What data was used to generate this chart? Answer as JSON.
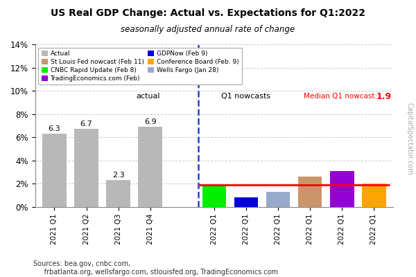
{
  "title": "US Real GDP Change: Actual vs. Expectations for Q1:2022",
  "subtitle": "seasonally adjusted annual rate of change",
  "sources": "Sources: bea.gov, cnbc.com,\n     frbatlanta.org, wellsfargo.com, stlouisfed.org, TradingEconomics.com",
  "watermark": "CapitalSpectator.com",
  "actual_labels": [
    "2021 Q1",
    "2021 Q2",
    "2021 Q3",
    "2021 Q4"
  ],
  "actual_values": [
    6.3,
    6.7,
    2.3,
    6.9
  ],
  "actual_color": "#b8b8b8",
  "nowcast_labels": [
    "2022 Q1",
    "2022 Q1",
    "2022 Q1",
    "2022 Q1",
    "2022 Q1",
    "2022 Q1"
  ],
  "nowcast_values": [
    1.9,
    0.8,
    1.3,
    2.6,
    3.1,
    2.0
  ],
  "nowcast_colors": [
    "#00ee00",
    "#0000dd",
    "#99aacc",
    "#c8956c",
    "#9400d3",
    "#ffa500"
  ],
  "nowcast_names": [
    "CNBC Rapid Update (Feb 8)",
    "GDPNow (Feb 9)",
    "Wells Fargo (Jan 28)",
    "St Louis Fed nowcast (Feb 11)",
    "TradingEconomics.com (Feb)",
    "Conference Board (Feb. 9)"
  ],
  "median_nowcast": 1.9,
  "median_color": "#ff0000",
  "ylim_max": 14,
  "ytick_vals": [
    0,
    2,
    4,
    6,
    8,
    10,
    12,
    14
  ],
  "ytick_labels": [
    "0%",
    "2%",
    "4%",
    "6%",
    "8%",
    "10%",
    "12%",
    "14%"
  ],
  "annotation_actual": "actual",
  "annotation_nowcasts": "Q1 nowcasts",
  "annotation_median": "Median Q1 nowcast:",
  "annotation_median_value": "1.9"
}
